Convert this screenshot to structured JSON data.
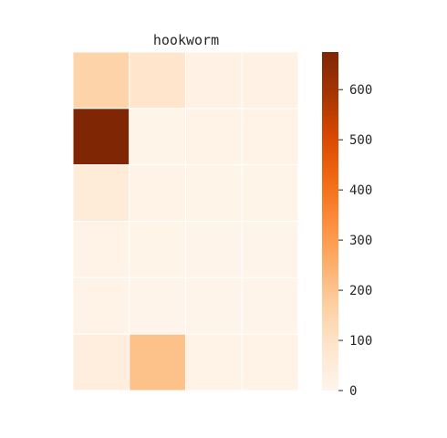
{
  "chart_data": {
    "type": "heatmap",
    "title": "hookworm",
    "xlabel": "",
    "ylabel": "",
    "rows": 6,
    "cols": 4,
    "values": [
      [
        155,
        90,
        18,
        22
      ],
      [
        675,
        8,
        10,
        10
      ],
      [
        55,
        10,
        8,
        8
      ],
      [
        12,
        8,
        6,
        6
      ],
      [
        10,
        6,
        6,
        6
      ],
      [
        40,
        205,
        12,
        15
      ]
    ],
    "colorbar": {
      "range": [
        0,
        675
      ],
      "ticks": [
        0,
        100,
        200,
        300,
        400,
        500,
        600
      ],
      "tick_labels": [
        "0",
        "100",
        "200",
        "300",
        "400",
        "500",
        "600"
      ]
    },
    "colormap": "Oranges",
    "colors": {
      "low": "#fff5eb",
      "high": "#7f2704",
      "cell_border": "#ffffff",
      "text": "#262626"
    },
    "grid": false,
    "legend_position": "right"
  }
}
